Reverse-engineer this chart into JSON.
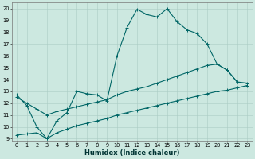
{
  "line1_x": [
    0,
    1,
    2,
    3,
    4,
    5,
    6,
    7,
    8,
    9,
    10,
    11,
    12,
    13,
    14,
    15,
    16,
    17,
    18,
    19,
    20,
    21,
    22
  ],
  "line1_y": [
    12.7,
    11.8,
    10.0,
    9.0,
    10.5,
    11.2,
    13.0,
    12.8,
    12.7,
    12.2,
    16.0,
    18.4,
    19.95,
    19.5,
    19.3,
    20.0,
    18.9,
    18.2,
    17.9,
    17.0,
    15.3,
    14.8,
    13.8
  ],
  "line2_x": [
    0,
    1,
    2,
    3,
    4,
    5,
    6,
    7,
    8,
    9,
    10,
    11,
    12,
    13,
    14,
    15,
    16,
    17,
    18,
    19,
    20,
    21,
    22,
    23
  ],
  "line2_y": [
    12.5,
    12.0,
    11.5,
    11.0,
    11.3,
    11.5,
    11.7,
    11.9,
    12.1,
    12.3,
    12.7,
    13.0,
    13.2,
    13.4,
    13.7,
    14.0,
    14.3,
    14.6,
    14.9,
    15.2,
    15.3,
    14.8,
    13.8,
    13.7
  ],
  "line3_x": [
    0,
    1,
    2,
    3,
    4,
    5,
    6,
    7,
    8,
    9,
    10,
    11,
    12,
    13,
    14,
    15,
    16,
    17,
    18,
    19,
    20,
    21,
    22,
    23
  ],
  "line3_y": [
    9.3,
    9.4,
    9.5,
    9.0,
    9.5,
    9.8,
    10.1,
    10.3,
    10.5,
    10.7,
    11.0,
    11.2,
    11.4,
    11.6,
    11.8,
    12.0,
    12.2,
    12.4,
    12.6,
    12.8,
    13.0,
    13.1,
    13.3,
    13.5
  ],
  "bg_color": "#cce8e0",
  "grid_color": "#aaccc4",
  "line_color": "#006666",
  "xlabel": "Humidex (Indice chaleur)",
  "ylim": [
    8.8,
    20.5
  ],
  "xlim": [
    -0.5,
    23.5
  ],
  "yticks": [
    9,
    10,
    11,
    12,
    13,
    14,
    15,
    16,
    17,
    18,
    19,
    20
  ],
  "xticks": [
    0,
    1,
    2,
    3,
    4,
    5,
    6,
    7,
    8,
    9,
    10,
    11,
    12,
    13,
    14,
    15,
    16,
    17,
    18,
    19,
    20,
    21,
    22,
    23
  ],
  "xlabel_fontsize": 6.0,
  "tick_fontsize": 4.8,
  "marker_size": 3.5,
  "line_width": 0.8
}
